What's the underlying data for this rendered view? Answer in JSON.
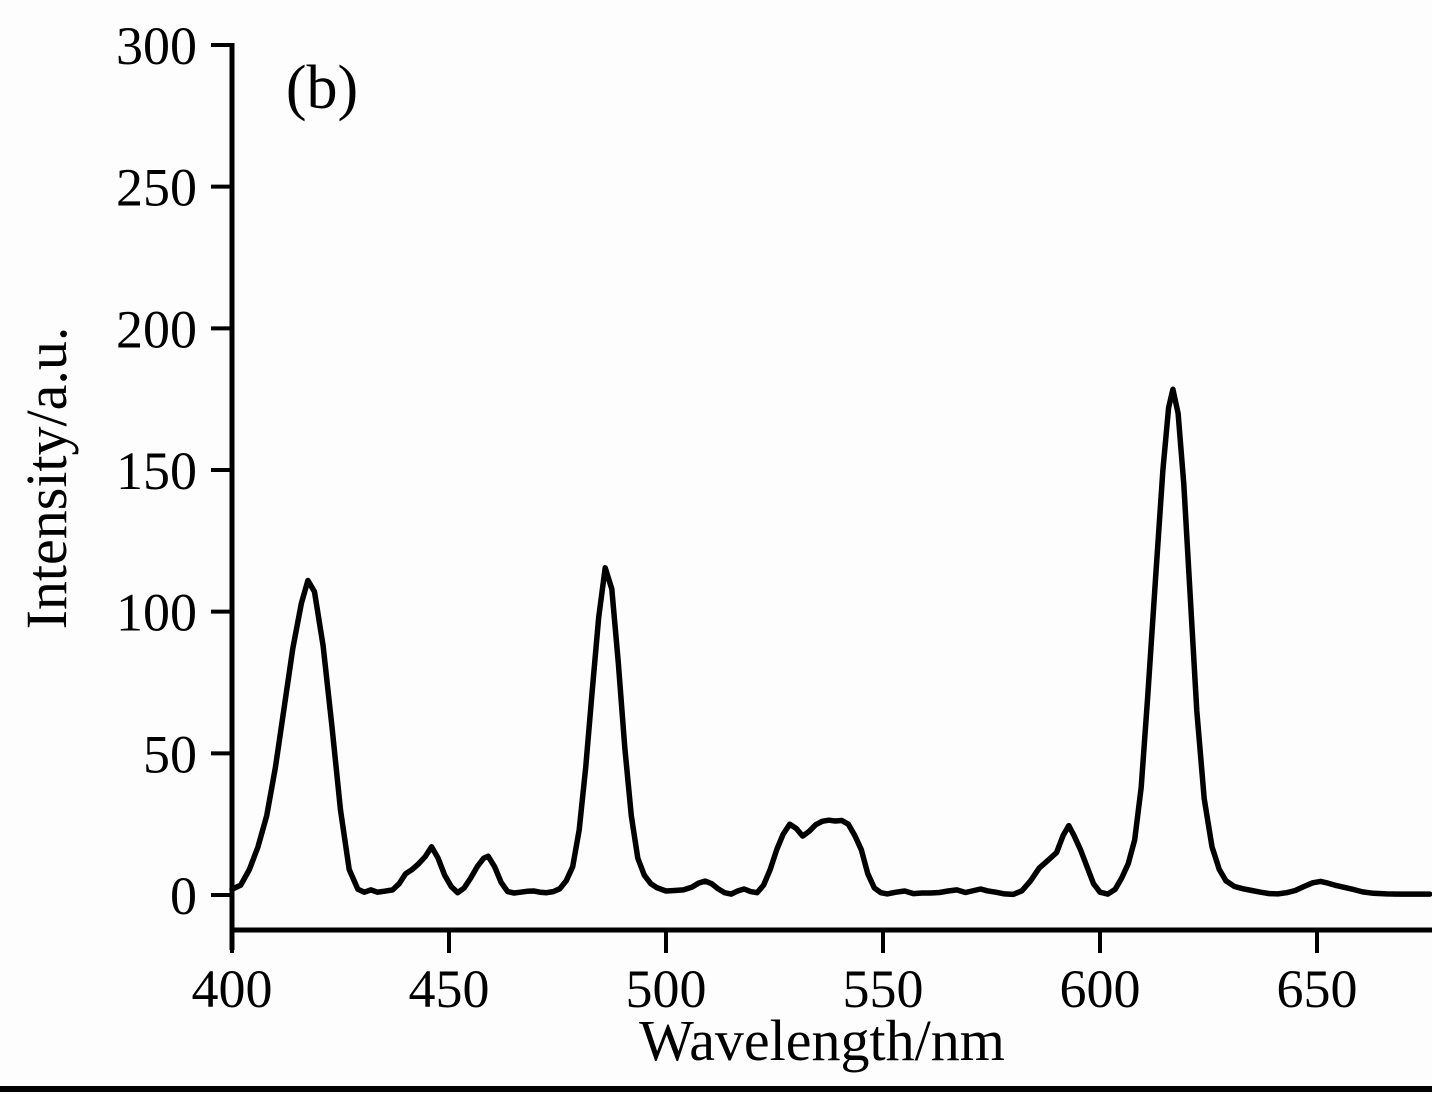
{
  "figure": {
    "panel_label": "(b)",
    "colors": {
      "background": "#fdfdfd",
      "line": "#000000",
      "axis": "#000000",
      "bottom_border": "#000000"
    }
  },
  "chart_data": {
    "type": "line",
    "title": "",
    "xlabel": "Wavelength/nm",
    "ylabel": "Intensity/a.u.",
    "xlim": [
      400,
      676
    ],
    "ylim": [
      0,
      300
    ],
    "x_ticks": [
      "400",
      "450",
      "500",
      "550",
      "600",
      "650"
    ],
    "y_ticks": [
      "0",
      "50",
      "100",
      "150",
      "200",
      "250",
      "300"
    ],
    "x_tick_values": [
      400,
      450,
      500,
      550,
      600,
      650
    ],
    "y_tick_values": [
      0,
      50,
      100,
      150,
      200,
      250,
      300
    ],
    "grid": false,
    "legend_position": "none",
    "series": [
      {
        "name": "emission-spectrum",
        "points": [
          [
            400,
            2
          ],
          [
            402,
            3.5
          ],
          [
            404,
            9
          ],
          [
            406,
            17
          ],
          [
            408,
            28
          ],
          [
            410,
            45
          ],
          [
            412,
            66
          ],
          [
            414,
            87
          ],
          [
            416,
            103
          ],
          [
            417.5,
            111
          ],
          [
            419,
            107
          ],
          [
            421,
            88
          ],
          [
            423,
            60
          ],
          [
            425,
            30
          ],
          [
            427,
            9
          ],
          [
            429,
            2
          ],
          [
            430.5,
            1
          ],
          [
            432,
            1.8
          ],
          [
            433.5,
            1
          ],
          [
            435,
            1.3
          ],
          [
            437,
            1.8
          ],
          [
            438.5,
            4
          ],
          [
            440,
            7.5
          ],
          [
            441.5,
            9
          ],
          [
            443,
            11
          ],
          [
            444.5,
            13.5
          ],
          [
            446,
            17
          ],
          [
            447.5,
            13
          ],
          [
            449,
            7
          ],
          [
            450.5,
            3
          ],
          [
            452,
            0.8
          ],
          [
            453.5,
            2.5
          ],
          [
            455,
            6
          ],
          [
            456.5,
            10
          ],
          [
            458,
            13
          ],
          [
            459,
            13.7
          ],
          [
            460.5,
            10
          ],
          [
            462,
            4.5
          ],
          [
            463.5,
            1.2
          ],
          [
            465,
            0.7
          ],
          [
            466.5,
            1
          ],
          [
            468,
            1.3
          ],
          [
            469.5,
            1.4
          ],
          [
            471,
            1
          ],
          [
            472.5,
            0.8
          ],
          [
            474,
            1.2
          ],
          [
            475.5,
            2.2
          ],
          [
            477,
            5
          ],
          [
            478.5,
            10
          ],
          [
            480,
            23
          ],
          [
            481.5,
            45
          ],
          [
            483,
            72
          ],
          [
            484.5,
            98
          ],
          [
            486,
            115.5
          ],
          [
            487.5,
            108
          ],
          [
            489,
            82
          ],
          [
            490.5,
            52
          ],
          [
            492,
            28
          ],
          [
            493.5,
            13
          ],
          [
            495,
            7
          ],
          [
            496.5,
            4
          ],
          [
            498,
            2.5
          ],
          [
            500,
            1.4
          ],
          [
            502,
            1.6
          ],
          [
            504,
            1.8
          ],
          [
            506,
            2.8
          ],
          [
            507.5,
            4.2
          ],
          [
            509,
            4.9
          ],
          [
            510.5,
            4
          ],
          [
            512,
            2.2
          ],
          [
            513.5,
            0.8
          ],
          [
            515,
            0.3
          ],
          [
            516.5,
            1.4
          ],
          [
            518,
            2.1
          ],
          [
            519.5,
            1.2
          ],
          [
            521,
            0.8
          ],
          [
            522.5,
            3.5
          ],
          [
            524,
            9
          ],
          [
            525.5,
            16
          ],
          [
            527,
            21.5
          ],
          [
            528.5,
            25
          ],
          [
            530,
            23.5
          ],
          [
            531.5,
            20.8
          ],
          [
            533,
            22.5
          ],
          [
            534.5,
            24.8
          ],
          [
            536,
            26
          ],
          [
            537.5,
            26.4
          ],
          [
            539,
            26.1
          ],
          [
            540.5,
            26.3
          ],
          [
            542,
            25
          ],
          [
            543.5,
            21
          ],
          [
            545,
            16
          ],
          [
            546.5,
            7.5
          ],
          [
            548,
            2.5
          ],
          [
            549.5,
            0.8
          ],
          [
            551,
            0.4
          ],
          [
            553,
            1
          ],
          [
            555,
            1.4
          ],
          [
            557,
            0.5
          ],
          [
            559,
            0.7
          ],
          [
            561,
            0.7
          ],
          [
            563,
            0.9
          ],
          [
            565,
            1.4
          ],
          [
            567,
            1.8
          ],
          [
            569,
            0.9
          ],
          [
            571,
            1.6
          ],
          [
            572.5,
            2.1
          ],
          [
            574,
            1.5
          ],
          [
            576,
            1
          ],
          [
            578,
            0.4
          ],
          [
            580,
            0.2
          ],
          [
            582,
            1.5
          ],
          [
            584,
            5
          ],
          [
            586,
            9.5
          ],
          [
            588,
            12.2
          ],
          [
            590,
            15
          ],
          [
            591.5,
            21
          ],
          [
            592.8,
            24.5
          ],
          [
            594,
            21
          ],
          [
            595.5,
            16
          ],
          [
            597,
            10
          ],
          [
            598.5,
            4
          ],
          [
            600,
            1
          ],
          [
            601.8,
            0.3
          ],
          [
            603.5,
            2
          ],
          [
            605,
            6
          ],
          [
            606.5,
            11
          ],
          [
            608,
            19.5
          ],
          [
            609.5,
            38
          ],
          [
            611,
            70
          ],
          [
            612.8,
            112
          ],
          [
            614.5,
            150
          ],
          [
            615.8,
            172
          ],
          [
            616.8,
            178.5
          ],
          [
            618,
            170
          ],
          [
            619.3,
            145
          ],
          [
            620.8,
            105
          ],
          [
            622.3,
            65
          ],
          [
            624,
            34
          ],
          [
            625.8,
            17
          ],
          [
            627.5,
            9
          ],
          [
            629,
            5
          ],
          [
            631,
            3
          ],
          [
            633,
            2.2
          ],
          [
            635,
            1.6
          ],
          [
            637,
            1
          ],
          [
            639,
            0.5
          ],
          [
            641,
            0.4
          ],
          [
            643,
            0.8
          ],
          [
            645,
            1.6
          ],
          [
            647,
            3
          ],
          [
            649,
            4.3
          ],
          [
            650.8,
            4.8
          ],
          [
            652.5,
            4.2
          ],
          [
            654.5,
            3.3
          ],
          [
            656.5,
            2.6
          ],
          [
            658.5,
            1.9
          ],
          [
            660.5,
            1.1
          ],
          [
            663,
            0.6
          ],
          [
            666,
            0.4
          ],
          [
            669,
            0.3
          ],
          [
            672,
            0.3
          ],
          [
            676,
            0.3
          ]
        ]
      }
    ]
  }
}
